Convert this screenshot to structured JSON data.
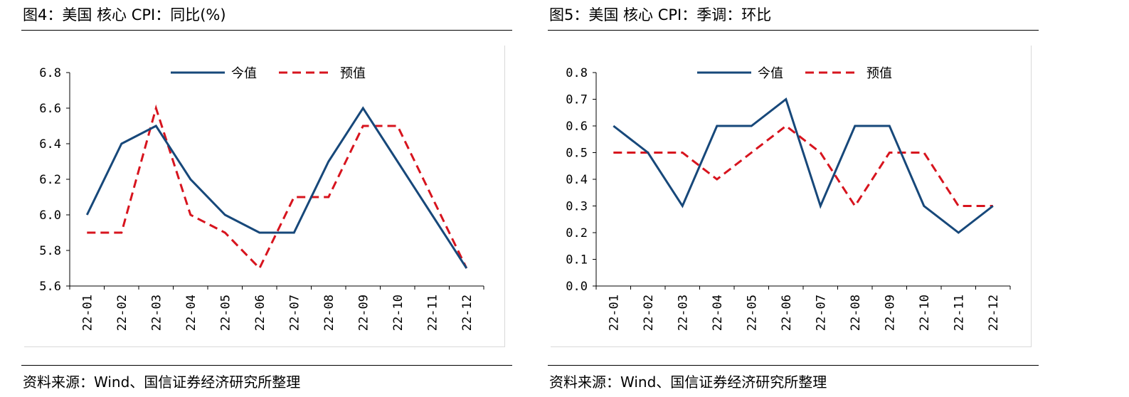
{
  "figures": [
    {
      "title": "图4：美国 核心 CPI：同比(%)",
      "source": "资料来源：Wind、国信证券经济研究所整理"
    },
    {
      "title": "图5：美国 核心 CPI：季调：环比",
      "source": "资料来源：Wind、国信证券经济研究所整理"
    }
  ],
  "colors": {
    "actual": "#17487A",
    "forecast": "#D7141E"
  },
  "chart_data": [
    {
      "type": "line",
      "categories": [
        "22-01",
        "22-02",
        "22-03",
        "22-04",
        "22-05",
        "22-06",
        "22-07",
        "22-08",
        "22-09",
        "22-10",
        "22-11",
        "22-12"
      ],
      "series": [
        {
          "name": "今值",
          "values": [
            6.0,
            6.4,
            6.5,
            6.2,
            6.0,
            5.9,
            5.9,
            6.3,
            6.6,
            6.3,
            6.0,
            5.7
          ]
        },
        {
          "name": "预值",
          "values": [
            5.9,
            5.9,
            6.6,
            6.0,
            5.9,
            5.7,
            6.1,
            6.1,
            6.5,
            6.5,
            6.1,
            5.7
          ]
        }
      ],
      "ylim": [
        5.6,
        6.8
      ],
      "yticks": [
        "5.6",
        "5.8",
        "6.0",
        "6.2",
        "6.4",
        "6.6",
        "6.8"
      ],
      "legend": "top-center",
      "grid": false
    },
    {
      "type": "line",
      "categories": [
        "22-01",
        "22-02",
        "22-03",
        "22-04",
        "22-05",
        "22-06",
        "22-07",
        "22-08",
        "22-09",
        "22-10",
        "22-11",
        "22-12"
      ],
      "series": [
        {
          "name": "今值",
          "values": [
            0.6,
            0.5,
            0.3,
            0.6,
            0.6,
            0.7,
            0.3,
            0.6,
            0.6,
            0.3,
            0.2,
            0.3
          ]
        },
        {
          "name": "预值",
          "values": [
            0.5,
            0.5,
            0.5,
            0.4,
            0.5,
            0.6,
            0.5,
            0.3,
            0.5,
            0.5,
            0.3,
            0.3
          ]
        }
      ],
      "ylim": [
        0.0,
        0.8
      ],
      "yticks": [
        "0.0",
        "0.1",
        "0.2",
        "0.3",
        "0.4",
        "0.5",
        "0.6",
        "0.7",
        "0.8"
      ],
      "legend": "top-center",
      "grid": false
    }
  ]
}
